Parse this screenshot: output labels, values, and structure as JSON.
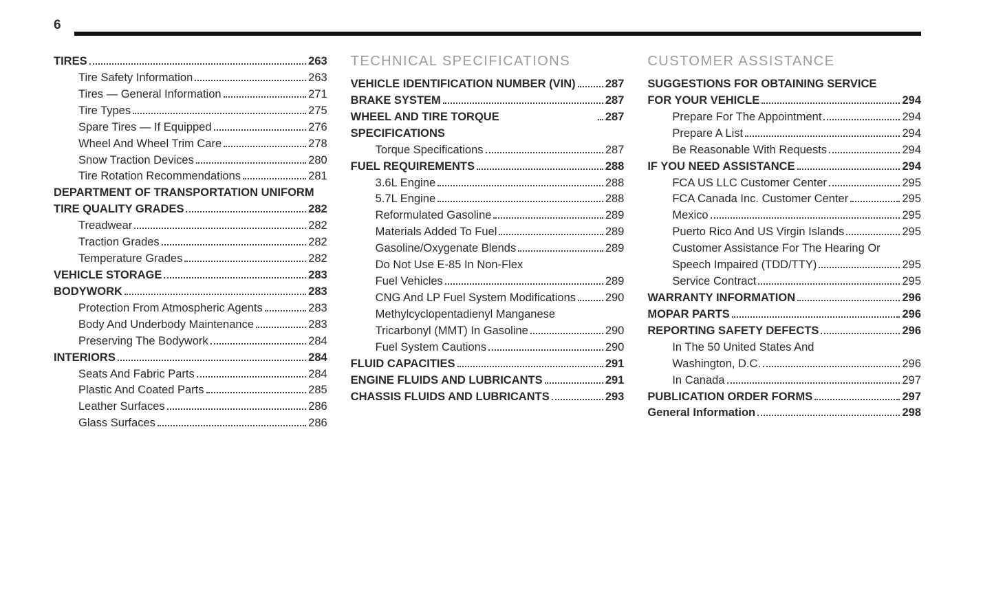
{
  "pageNumber": "6",
  "columns": [
    {
      "sectionTitle": null,
      "entries": [
        {
          "label": "TIRES",
          "page": "263",
          "bold": true,
          "sub": false
        },
        {
          "label": "Tire Safety Information",
          "page": "263",
          "bold": false,
          "sub": true
        },
        {
          "label": "Tires — General Information",
          "page": "271",
          "bold": false,
          "sub": true
        },
        {
          "label": "Tire Types",
          "page": "275",
          "bold": false,
          "sub": true
        },
        {
          "label": "Spare Tires — If Equipped",
          "page": "276",
          "bold": false,
          "sub": true
        },
        {
          "label": "Wheel And Wheel Trim Care",
          "page": "278",
          "bold": false,
          "sub": true
        },
        {
          "label": "Snow Traction Devices",
          "page": "280",
          "bold": false,
          "sub": true
        },
        {
          "label": "Tire Rotation Recommendations",
          "page": "281",
          "bold": false,
          "sub": true
        },
        {
          "preLines": [
            "DEPARTMENT OF TRANSPORTATION UNIFORM"
          ],
          "label": "TIRE QUALITY GRADES",
          "page": "282",
          "bold": true,
          "sub": false
        },
        {
          "label": "Treadwear",
          "page": "282",
          "bold": false,
          "sub": true
        },
        {
          "label": "Traction Grades",
          "page": "282",
          "bold": false,
          "sub": true
        },
        {
          "label": "Temperature Grades",
          "page": "282",
          "bold": false,
          "sub": true
        },
        {
          "label": "VEHICLE STORAGE",
          "page": "283",
          "bold": true,
          "sub": false
        },
        {
          "label": "BODYWORK",
          "page": "283",
          "bold": true,
          "sub": false
        },
        {
          "label": "Protection From Atmospheric Agents",
          "page": "283",
          "bold": false,
          "sub": true
        },
        {
          "label": "Body And Underbody Maintenance",
          "page": "283",
          "bold": false,
          "sub": true
        },
        {
          "label": "Preserving The Bodywork",
          "page": "284",
          "bold": false,
          "sub": true
        },
        {
          "label": "INTERIORS",
          "page": "284",
          "bold": true,
          "sub": false
        },
        {
          "label": "Seats And Fabric Parts",
          "page": "284",
          "bold": false,
          "sub": true
        },
        {
          "label": "Plastic And Coated Parts",
          "page": "285",
          "bold": false,
          "sub": true
        },
        {
          "label": "Leather Surfaces",
          "page": "286",
          "bold": false,
          "sub": true
        },
        {
          "label": "Glass Surfaces",
          "page": "286",
          "bold": false,
          "sub": true
        }
      ]
    },
    {
      "sectionTitle": "TECHNICAL SPECIFICATIONS",
      "entries": [
        {
          "label": "VEHICLE IDENTIFICATION NUMBER (VIN)",
          "page": "287",
          "bold": true,
          "sub": false
        },
        {
          "label": "BRAKE SYSTEM",
          "page": "287",
          "bold": true,
          "sub": false
        },
        {
          "label": "WHEEL AND TIRE TORQUE SPECIFICATIONS",
          "page": "287",
          "bold": true,
          "sub": false
        },
        {
          "label": "Torque Specifications",
          "page": "287",
          "bold": false,
          "sub": true
        },
        {
          "label": "FUEL REQUIREMENTS",
          "page": "288",
          "bold": true,
          "sub": false
        },
        {
          "label": "3.6L Engine",
          "page": "288",
          "bold": false,
          "sub": true
        },
        {
          "label": "5.7L Engine",
          "page": "288",
          "bold": false,
          "sub": true
        },
        {
          "label": "Reformulated Gasoline",
          "page": "289",
          "bold": false,
          "sub": true
        },
        {
          "label": "Materials Added To Fuel",
          "page": "289",
          "bold": false,
          "sub": true
        },
        {
          "label": "Gasoline/Oxygenate Blends",
          "page": "289",
          "bold": false,
          "sub": true
        },
        {
          "preLines": [
            "Do Not Use E-85 In Non-Flex"
          ],
          "label": "Fuel Vehicles",
          "page": "289",
          "bold": false,
          "sub": true
        },
        {
          "label": "CNG And LP Fuel System Modifications",
          "page": "290",
          "bold": false,
          "sub": true
        },
        {
          "preLines": [
            "Methylcyclopentadienyl Manganese"
          ],
          "label": "Tricarbonyl (MMT) In Gasoline",
          "page": "290",
          "bold": false,
          "sub": true
        },
        {
          "label": "Fuel System Cautions",
          "page": "290",
          "bold": false,
          "sub": true
        },
        {
          "label": "FLUID CAPACITIES",
          "page": "291",
          "bold": true,
          "sub": false
        },
        {
          "label": "ENGINE FLUIDS AND LUBRICANTS",
          "page": "291",
          "bold": true,
          "sub": false
        },
        {
          "label": "CHASSIS FLUIDS AND LUBRICANTS",
          "page": "293",
          "bold": true,
          "sub": false
        }
      ]
    },
    {
      "sectionTitle": "CUSTOMER ASSISTANCE",
      "entries": [
        {
          "preLines": [
            "SUGGESTIONS FOR OBTAINING SERVICE"
          ],
          "label": "FOR YOUR VEHICLE",
          "page": "294",
          "bold": true,
          "sub": false
        },
        {
          "label": "Prepare For The Appointment",
          "page": "294",
          "bold": false,
          "sub": true
        },
        {
          "label": "Prepare A List",
          "page": "294",
          "bold": false,
          "sub": true
        },
        {
          "label": "Be Reasonable With Requests",
          "page": "294",
          "bold": false,
          "sub": true
        },
        {
          "label": "IF YOU NEED ASSISTANCE",
          "page": "294",
          "bold": true,
          "sub": false
        },
        {
          "label": "FCA US LLC Customer Center",
          "page": "295",
          "bold": false,
          "sub": true
        },
        {
          "label": "FCA Canada Inc. Customer Center",
          "page": "295",
          "bold": false,
          "sub": true
        },
        {
          "label": "Mexico",
          "page": "295",
          "bold": false,
          "sub": true
        },
        {
          "label": "Puerto Rico And US Virgin Islands",
          "page": "295",
          "bold": false,
          "sub": true
        },
        {
          "preLines": [
            "Customer Assistance For The Hearing Or"
          ],
          "label": "Speech Impaired (TDD/TTY)",
          "page": "295",
          "bold": false,
          "sub": true
        },
        {
          "label": "Service Contract",
          "page": "295",
          "bold": false,
          "sub": true
        },
        {
          "label": "WARRANTY INFORMATION",
          "page": "296",
          "bold": true,
          "sub": false
        },
        {
          "label": "MOPAR PARTS",
          "page": "296",
          "bold": true,
          "sub": false
        },
        {
          "label": "REPORTING SAFETY DEFECTS",
          "page": "296",
          "bold": true,
          "sub": false
        },
        {
          "preLines": [
            "In The 50 United States And"
          ],
          "label": "Washington, D.C.",
          "page": "296",
          "bold": false,
          "sub": true
        },
        {
          "label": "In Canada",
          "page": "297",
          "bold": false,
          "sub": true
        },
        {
          "label": "PUBLICATION ORDER FORMS",
          "page": "297",
          "bold": true,
          "sub": false
        },
        {
          "label": "General Information",
          "page": "298",
          "bold": true,
          "sub": false
        }
      ]
    }
  ]
}
